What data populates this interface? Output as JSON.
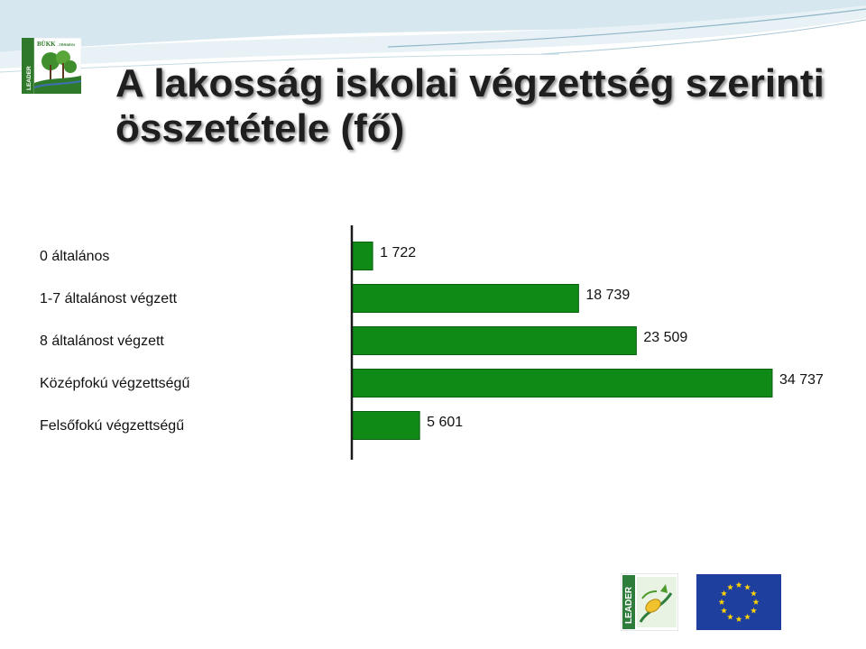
{
  "slide": {
    "title": "A lakosság iskolai végzettség szerinti összetétele (fő)"
  },
  "branding": {
    "top_logo_text": "BÜKK-TÉRSÉGI LEADER",
    "bottom_logo_text": "LEADER"
  },
  "colors": {
    "bar_fill": "#0f8a16",
    "bar_stroke": "#0b5f10",
    "axis": "#1a1a1a",
    "eu_blue": "#1f3f9e",
    "eu_star": "#ffd200",
    "leader_green": "#4c9a2a"
  },
  "chart_data": {
    "type": "bar",
    "orientation": "horizontal",
    "categories": [
      "0 általános",
      "1-7 általánost végzett",
      "8 általánost végzett",
      "Középfokú végzettségű",
      "Felsőfokú végzettségű"
    ],
    "values": [
      1722,
      18739,
      23509,
      34737,
      5601
    ],
    "value_labels": [
      "1 722",
      "18 739",
      "23 509",
      "34 737",
      "5 601"
    ],
    "title": "",
    "xlabel": "",
    "ylabel": "",
    "grid": false,
    "legend": "none"
  }
}
